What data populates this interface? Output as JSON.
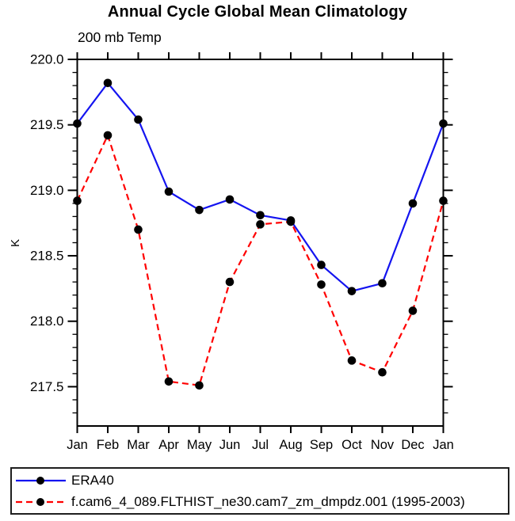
{
  "title": "Annual Cycle Global Mean Climatology",
  "subtitle": "200 mb Temp",
  "chart_data": {
    "type": "line",
    "title": "Annual Cycle Global Mean Climatology",
    "subtitle": "200 mb Temp",
    "xlabel": "",
    "ylabel": "K",
    "categories": [
      "Jan",
      "Feb",
      "Mar",
      "Apr",
      "May",
      "Jun",
      "Jul",
      "Aug",
      "Sep",
      "Oct",
      "Nov",
      "Dec",
      "Jan"
    ],
    "ylim": [
      217.2,
      220.0
    ],
    "yticks_major": [
      217.5,
      218.0,
      218.5,
      219.0,
      219.5,
      220.0
    ],
    "ytick_minor_step": 0.1,
    "ytick_label_format": "one_decimal",
    "grid": false,
    "legend_position": "bottom",
    "axis_color": "#000000",
    "marker_color": "#000000",
    "series": [
      {
        "name": "ERA40",
        "color": "#1414f0",
        "style": "solid",
        "marker": "circle",
        "values": [
          219.51,
          219.82,
          219.54,
          218.99,
          218.85,
          218.93,
          218.81,
          218.77,
          218.43,
          218.23,
          218.29,
          218.9,
          219.51
        ]
      },
      {
        "name": "f.cam6_4_089.FLTHIST_ne30.cam7_zm_dmpdz.001 (1995-2003)",
        "color": "#ff0000",
        "style": "dashed",
        "marker": "circle",
        "values": [
          218.92,
          219.42,
          218.7,
          217.54,
          217.51,
          218.3,
          218.74,
          218.76,
          218.28,
          217.7,
          217.61,
          218.08,
          218.92
        ]
      }
    ]
  }
}
